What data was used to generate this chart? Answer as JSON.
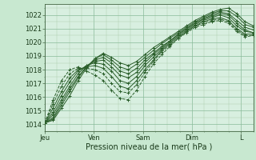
{
  "background_color": "#c8e8d0",
  "plot_bg_color": "#d8efe0",
  "grid_color_major": "#88bb99",
  "grid_color_minor": "#aaccaa",
  "line_color": "#2a5e2a",
  "xlabel": "Pression niveau de la mer( hPa )",
  "ylim": [
    1013.5,
    1022.8
  ],
  "yticks": [
    1014,
    1015,
    1016,
    1017,
    1018,
    1019,
    1020,
    1021,
    1022
  ],
  "xtick_labels": [
    "Jeu",
    "Ven",
    "Sam",
    "Dim",
    "L"
  ],
  "xtick_positions": [
    0,
    24,
    48,
    72,
    96
  ],
  "total_hours": 102,
  "series": [
    [
      1014.1,
      1014.3,
      1015.2,
      1016.1,
      1017.2,
      1018.1,
      1018.8,
      1019.2,
      1018.9,
      1018.5,
      1018.3,
      1018.6,
      1019.1,
      1019.6,
      1020.0,
      1020.4,
      1020.8,
      1021.2,
      1021.6,
      1021.9,
      1022.2,
      1022.4,
      1022.5,
      1022.1,
      1021.5,
      1021.2
    ],
    [
      1014.1,
      1014.4,
      1015.4,
      1016.4,
      1017.4,
      1018.2,
      1018.8,
      1019.1,
      1018.7,
      1018.2,
      1018.0,
      1018.4,
      1018.9,
      1019.4,
      1019.9,
      1020.3,
      1020.7,
      1021.1,
      1021.5,
      1021.8,
      1022.1,
      1022.3,
      1022.3,
      1021.9,
      1021.3,
      1021.1
    ],
    [
      1014.1,
      1014.5,
      1015.6,
      1016.6,
      1017.5,
      1018.2,
      1018.7,
      1018.9,
      1018.5,
      1017.9,
      1017.7,
      1018.1,
      1018.7,
      1019.2,
      1019.7,
      1020.1,
      1020.6,
      1021.0,
      1021.4,
      1021.7,
      1022.0,
      1022.2,
      1022.1,
      1021.6,
      1021.1,
      1020.9
    ],
    [
      1014.1,
      1014.7,
      1015.8,
      1016.8,
      1017.7,
      1018.3,
      1018.6,
      1018.7,
      1018.2,
      1017.6,
      1017.4,
      1017.8,
      1018.5,
      1019.1,
      1019.6,
      1020.1,
      1020.6,
      1021.0,
      1021.4,
      1021.7,
      1021.9,
      1022.1,
      1022.0,
      1021.4,
      1020.9,
      1020.7
    ],
    [
      1014.1,
      1014.9,
      1016.1,
      1017.1,
      1017.9,
      1018.3,
      1018.5,
      1018.4,
      1017.9,
      1017.2,
      1017.0,
      1017.5,
      1018.3,
      1018.9,
      1019.5,
      1020.0,
      1020.5,
      1020.9,
      1021.3,
      1021.6,
      1021.8,
      1022.0,
      1021.8,
      1021.2,
      1020.8,
      1020.7
    ],
    [
      1014.1,
      1015.2,
      1016.4,
      1017.4,
      1018.0,
      1018.2,
      1018.3,
      1018.1,
      1017.5,
      1016.8,
      1016.6,
      1017.2,
      1018.0,
      1018.7,
      1019.4,
      1019.9,
      1020.4,
      1020.8,
      1021.2,
      1021.5,
      1021.7,
      1021.8,
      1021.6,
      1021.0,
      1020.6,
      1020.6
    ],
    [
      1014.1,
      1015.5,
      1016.8,
      1017.7,
      1018.1,
      1018.1,
      1018.0,
      1017.7,
      1017.0,
      1016.4,
      1016.3,
      1016.9,
      1017.8,
      1018.6,
      1019.3,
      1019.8,
      1020.3,
      1020.8,
      1021.2,
      1021.4,
      1021.6,
      1021.7,
      1021.5,
      1020.9,
      1020.5,
      1020.5
    ],
    [
      1014.1,
      1015.8,
      1017.2,
      1018.0,
      1018.2,
      1017.9,
      1017.6,
      1017.2,
      1016.5,
      1015.9,
      1015.8,
      1016.5,
      1017.5,
      1018.4,
      1019.1,
      1019.7,
      1020.3,
      1020.7,
      1021.1,
      1021.3,
      1021.5,
      1021.6,
      1021.4,
      1020.8,
      1020.4,
      1020.5
    ]
  ]
}
